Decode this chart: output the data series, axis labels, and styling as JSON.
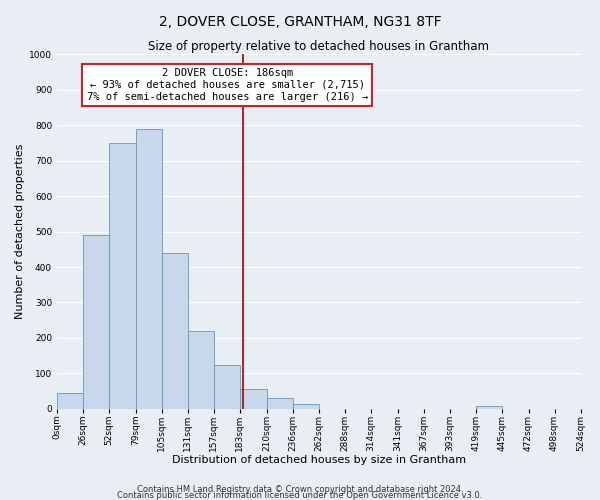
{
  "title": "2, DOVER CLOSE, GRANTHAM, NG31 8TF",
  "subtitle": "Size of property relative to detached houses in Grantham",
  "xlabel": "Distribution of detached houses by size in Grantham",
  "ylabel": "Number of detached properties",
  "bin_edges": [
    0,
    26,
    52,
    79,
    105,
    131,
    157,
    183,
    210,
    236,
    262,
    288,
    314,
    341,
    367,
    393,
    419,
    445,
    472,
    498,
    524
  ],
  "bar_heights": [
    45,
    490,
    750,
    790,
    440,
    220,
    125,
    55,
    30,
    15,
    0,
    0,
    0,
    0,
    0,
    0,
    7,
    0,
    0,
    0
  ],
  "bar_color": "#c8d8ea",
  "bar_edge_color": "#6699bb",
  "vline_x": 186,
  "vline_color": "#aa0000",
  "annotation_line1": "2 DOVER CLOSE: 186sqm",
  "annotation_line2": "← 93% of detached houses are smaller (2,715)",
  "annotation_line3": "7% of semi-detached houses are larger (216) →",
  "annotation_box_color": "#cc2222",
  "annotation_box_facecolor": "white",
  "ylim": [
    0,
    1000
  ],
  "yticks": [
    0,
    100,
    200,
    300,
    400,
    500,
    600,
    700,
    800,
    900,
    1000
  ],
  "tick_labels": [
    "0sqm",
    "26sqm",
    "52sqm",
    "79sqm",
    "105sqm",
    "131sqm",
    "157sqm",
    "183sqm",
    "210sqm",
    "236sqm",
    "262sqm",
    "288sqm",
    "314sqm",
    "341sqm",
    "367sqm",
    "393sqm",
    "419sqm",
    "445sqm",
    "472sqm",
    "498sqm",
    "524sqm"
  ],
  "footnote1": "Contains HM Land Registry data © Crown copyright and database right 2024.",
  "footnote2": "Contains public sector information licensed under the Open Government Licence v3.0.",
  "background_color": "#e8eef4",
  "plot_bg_color": "#e8eef4",
  "grid_color": "#ffffff",
  "title_fontsize": 10,
  "subtitle_fontsize": 8.5,
  "axis_label_fontsize": 8,
  "tick_fontsize": 6.5,
  "annotation_fontsize": 7.5,
  "footnote_fontsize": 6
}
